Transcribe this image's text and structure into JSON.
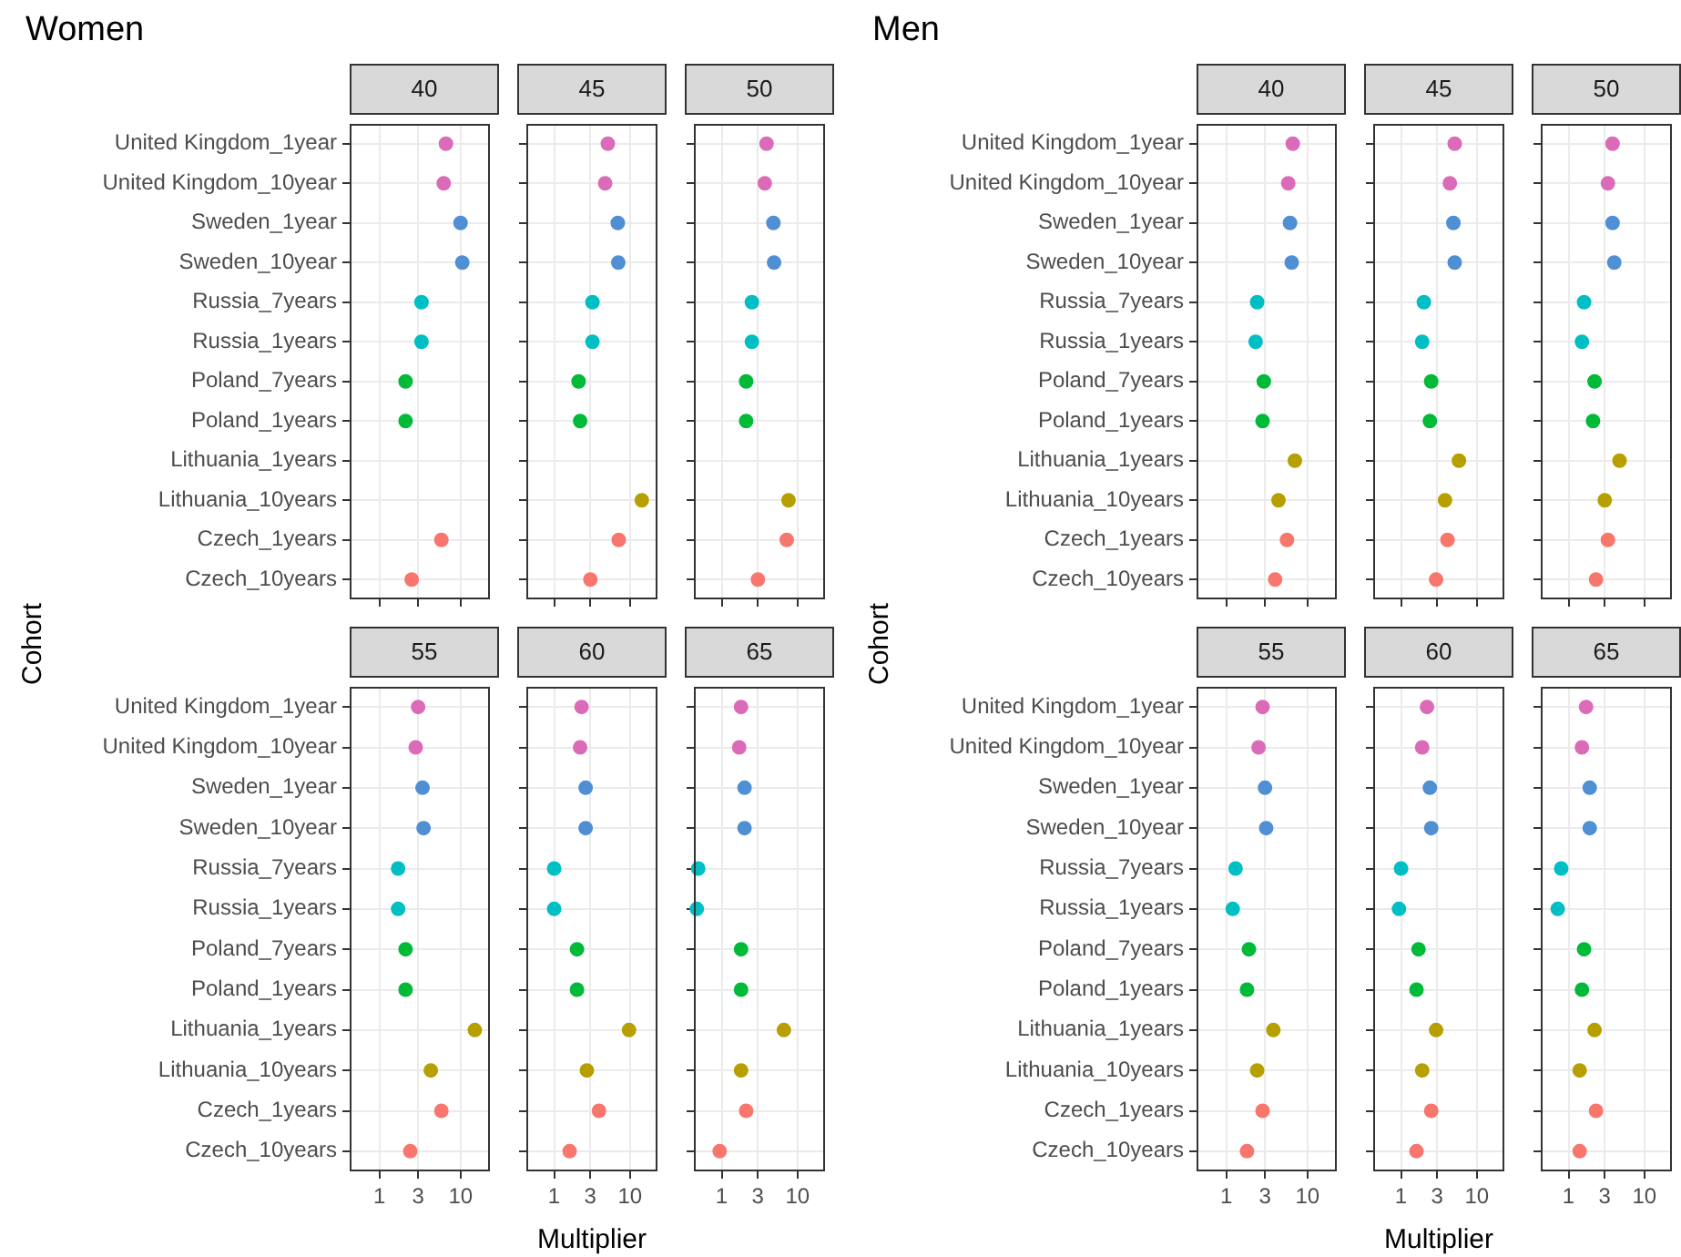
{
  "chart_data": [
    {
      "type": "scatter",
      "orientation": "horizontal",
      "title": "40",
      "annotations": [
        "Women"
      ],
      "ylabel": "Cohort",
      "categories": [
        "United Kingdom_1year",
        "United Kingdom_10year",
        "Sweden_1year",
        "Sweden_10year",
        "Russia_7years",
        "Russia_1years",
        "Poland_7years",
        "Poland_1years",
        "Lithuania_1years",
        "Lithuania_10years",
        "Czech_1years",
        "Czech_10years"
      ],
      "values": [
        6.6,
        6.2,
        10,
        10.5,
        3.3,
        3.3,
        2.1,
        2.1,
        null,
        null,
        5.8,
        2.5
      ],
      "colors": [
        "#db6bb8",
        "#db6bb8",
        "#4f8fd4",
        "#4f8fd4",
        "#00bfc4",
        "#00bfc4",
        "#00ba38",
        "#00ba38",
        "#b79f00",
        "#b79f00",
        "#f8766d",
        "#f8766d"
      ],
      "xlim": [
        0.43,
        23
      ],
      "xticks": [
        1,
        3,
        10
      ],
      "log": "x",
      "grid": true,
      "marker": "circle",
      "tick_labels": "y"
    },
    {
      "type": "scatter",
      "orientation": "horizontal",
      "title": "45",
      "categories": [
        null,
        null,
        null,
        null,
        null,
        null,
        null,
        null,
        null,
        null,
        null,
        null
      ],
      "values": [
        5.1,
        4.7,
        6.9,
        7.0,
        3.2,
        3.2,
        2.1,
        2.2,
        null,
        14.3,
        7.1,
        3.0
      ],
      "colors": [
        "#db6bb8",
        "#db6bb8",
        "#4f8fd4",
        "#4f8fd4",
        "#00bfc4",
        "#00bfc4",
        "#00ba38",
        "#00ba38",
        "#b79f00",
        "#b79f00",
        "#f8766d",
        "#f8766d"
      ],
      "xlim": [
        0.43,
        23
      ],
      "xticks": [
        1,
        3,
        10
      ],
      "log": "x",
      "grid": true,
      "marker": "circle",
      "tick_labels": false
    },
    {
      "type": "scatter",
      "orientation": "horizontal",
      "title": "50",
      "categories": [
        null,
        null,
        null,
        null,
        null,
        null,
        null,
        null,
        null,
        null,
        null,
        null
      ],
      "values": [
        3.9,
        3.7,
        4.8,
        4.9,
        2.5,
        2.5,
        2.1,
        2.1,
        null,
        7.6,
        7.2,
        3.0
      ],
      "colors": [
        "#db6bb8",
        "#db6bb8",
        "#4f8fd4",
        "#4f8fd4",
        "#00bfc4",
        "#00bfc4",
        "#00ba38",
        "#00ba38",
        "#b79f00",
        "#b79f00",
        "#f8766d",
        "#f8766d"
      ],
      "xlim": [
        0.43,
        23
      ],
      "xticks": [
        1,
        3,
        10
      ],
      "log": "x",
      "grid": true,
      "marker": "circle",
      "tick_labels": false
    },
    {
      "type": "scatter",
      "orientation": "horizontal",
      "title": "55",
      "categories": [
        "United Kingdom_1year",
        "United Kingdom_10year",
        "Sweden_1year",
        "Sweden_10year",
        "Russia_7years",
        "Russia_1years",
        "Poland_7years",
        "Poland_1years",
        "Lithuania_1years",
        "Lithuania_10years",
        "Czech_1years",
        "Czech_10years"
      ],
      "values": [
        3.0,
        2.8,
        3.4,
        3.5,
        1.7,
        1.7,
        2.1,
        2.1,
        15,
        4.3,
        5.8,
        2.4
      ],
      "colors": [
        "#db6bb8",
        "#db6bb8",
        "#4f8fd4",
        "#4f8fd4",
        "#00bfc4",
        "#00bfc4",
        "#00ba38",
        "#00ba38",
        "#b79f00",
        "#b79f00",
        "#f8766d",
        "#f8766d"
      ],
      "xlim": [
        0.43,
        23
      ],
      "xticks": [
        1,
        3,
        10
      ],
      "log": "x",
      "grid": true,
      "marker": "circle"
    },
    {
      "type": "scatter",
      "orientation": "horizontal",
      "title": "60",
      "xlabel": "Multiplier",
      "categories": [
        null,
        null,
        null,
        null,
        null,
        null,
        null,
        null,
        null,
        null,
        null,
        null
      ],
      "values": [
        2.3,
        2.2,
        2.6,
        2.6,
        1.0,
        1.0,
        2.0,
        2.0,
        9.7,
        2.7,
        3.9,
        1.6
      ],
      "colors": [
        "#db6bb8",
        "#db6bb8",
        "#4f8fd4",
        "#4f8fd4",
        "#00bfc4",
        "#00bfc4",
        "#00ba38",
        "#00ba38",
        "#b79f00",
        "#b79f00",
        "#f8766d",
        "#f8766d"
      ],
      "xlim": [
        0.43,
        23
      ],
      "xticks": [
        1,
        3,
        10
      ],
      "log": "x",
      "grid": true,
      "marker": "circle",
      "tick_labels": "x"
    },
    {
      "type": "scatter",
      "orientation": "horizontal",
      "title": "65",
      "categories": [
        null,
        null,
        null,
        null,
        null,
        null,
        null,
        null,
        null,
        null,
        null,
        null
      ],
      "values": [
        1.8,
        1.7,
        2.0,
        2.0,
        0.49,
        0.47,
        1.8,
        1.8,
        6.6,
        1.8,
        2.1,
        0.94
      ],
      "colors": [
        "#db6bb8",
        "#db6bb8",
        "#4f8fd4",
        "#4f8fd4",
        "#00bfc4",
        "#00bfc4",
        "#00ba38",
        "#00ba38",
        "#b79f00",
        "#b79f00",
        "#f8766d",
        "#f8766d"
      ],
      "xlim": [
        0.43,
        23
      ],
      "xticks": [
        1,
        3,
        10
      ],
      "log": "x",
      "grid": true,
      "marker": "circle",
      "tick_labels": "x"
    },
    {
      "type": "scatter",
      "orientation": "horizontal",
      "title": "40",
      "annotations": [
        "Men"
      ],
      "ylabel": "Cohort",
      "categories": [
        "United Kingdom_1year",
        "United Kingdom_10year",
        "Sweden_1year",
        "Sweden_10year",
        "Russia_7years",
        "Russia_1years",
        "Poland_7years",
        "Poland_1years",
        "Lithuania_1years",
        "Lithuania_10years",
        "Czech_1years",
        "Czech_10years"
      ],
      "values": [
        6.6,
        5.8,
        6.1,
        6.4,
        2.4,
        2.3,
        2.9,
        2.8,
        7.0,
        4.4,
        5.6,
        4.0
      ],
      "colors": [
        "#db6bb8",
        "#db6bb8",
        "#4f8fd4",
        "#4f8fd4",
        "#00bfc4",
        "#00bfc4",
        "#00ba38",
        "#00ba38",
        "#b79f00",
        "#b79f00",
        "#f8766d",
        "#f8766d"
      ],
      "xlim": [
        0.43,
        23
      ],
      "xticks": [
        1,
        3,
        10
      ],
      "log": "x",
      "grid": true,
      "marker": "circle",
      "tick_labels": "y"
    },
    {
      "type": "scatter",
      "orientation": "horizontal",
      "title": "45",
      "categories": [
        null,
        null,
        null,
        null,
        null,
        null,
        null,
        null,
        null,
        null,
        null,
        null
      ],
      "values": [
        5.1,
        4.4,
        4.9,
        5.1,
        2.0,
        1.9,
        2.5,
        2.4,
        5.8,
        3.8,
        4.1,
        2.9
      ],
      "colors": [
        "#db6bb8",
        "#db6bb8",
        "#4f8fd4",
        "#4f8fd4",
        "#00bfc4",
        "#00bfc4",
        "#00ba38",
        "#00ba38",
        "#b79f00",
        "#b79f00",
        "#f8766d",
        "#f8766d"
      ],
      "xlim": [
        0.43,
        23
      ],
      "xticks": [
        1,
        3,
        10
      ],
      "log": "x",
      "grid": true,
      "marker": "circle",
      "tick_labels": false
    },
    {
      "type": "scatter",
      "orientation": "horizontal",
      "title": "50",
      "categories": [
        null,
        null,
        null,
        null,
        null,
        null,
        null,
        null,
        null,
        null,
        null,
        null
      ],
      "values": [
        3.8,
        3.3,
        3.8,
        4.0,
        1.6,
        1.5,
        2.2,
        2.1,
        4.7,
        3.0,
        3.3,
        2.3
      ],
      "colors": [
        "#db6bb8",
        "#db6bb8",
        "#4f8fd4",
        "#4f8fd4",
        "#00bfc4",
        "#00bfc4",
        "#00ba38",
        "#00ba38",
        "#b79f00",
        "#b79f00",
        "#f8766d",
        "#f8766d"
      ],
      "xlim": [
        0.43,
        23
      ],
      "xticks": [
        1,
        3,
        10
      ],
      "log": "x",
      "grid": true,
      "marker": "circle",
      "tick_labels": false
    },
    {
      "type": "scatter",
      "orientation": "horizontal",
      "title": "55",
      "categories": [
        "United Kingdom_1year",
        "United Kingdom_10year",
        "Sweden_1year",
        "Sweden_10year",
        "Russia_7years",
        "Russia_1years",
        "Poland_7years",
        "Poland_1years",
        "Lithuania_1years",
        "Lithuania_10years",
        "Czech_1years",
        "Czech_10years"
      ],
      "values": [
        2.8,
        2.5,
        3.0,
        3.1,
        1.3,
        1.2,
        1.9,
        1.8,
        3.8,
        2.4,
        2.8,
        1.8
      ],
      "colors": [
        "#db6bb8",
        "#db6bb8",
        "#4f8fd4",
        "#4f8fd4",
        "#00bfc4",
        "#00bfc4",
        "#00ba38",
        "#00ba38",
        "#b79f00",
        "#b79f00",
        "#f8766d",
        "#f8766d"
      ],
      "xlim": [
        0.43,
        23
      ],
      "xticks": [
        1,
        3,
        10
      ],
      "log": "x",
      "grid": true,
      "marker": "circle"
    },
    {
      "type": "scatter",
      "orientation": "horizontal",
      "title": "60",
      "xlabel": "Multiplier",
      "categories": [
        null,
        null,
        null,
        null,
        null,
        null,
        null,
        null,
        null,
        null,
        null,
        null
      ],
      "values": [
        2.2,
        1.9,
        2.4,
        2.5,
        1.0,
        0.94,
        1.7,
        1.6,
        2.9,
        1.9,
        2.5,
        1.6
      ],
      "colors": [
        "#db6bb8",
        "#db6bb8",
        "#4f8fd4",
        "#4f8fd4",
        "#00bfc4",
        "#00bfc4",
        "#00ba38",
        "#00ba38",
        "#b79f00",
        "#b79f00",
        "#f8766d",
        "#f8766d"
      ],
      "xlim": [
        0.43,
        23
      ],
      "xticks": [
        1,
        3,
        10
      ],
      "log": "x",
      "grid": true,
      "marker": "circle",
      "tick_labels": "x"
    },
    {
      "type": "scatter",
      "orientation": "horizontal",
      "title": "65",
      "categories": [
        null,
        null,
        null,
        null,
        null,
        null,
        null,
        null,
        null,
        null,
        null,
        null
      ],
      "values": [
        1.7,
        1.5,
        1.9,
        1.9,
        0.8,
        0.72,
        1.6,
        1.5,
        2.2,
        1.4,
        2.3,
        1.4
      ],
      "colors": [
        "#db6bb8",
        "#db6bb8",
        "#4f8fd4",
        "#4f8fd4",
        "#00bfc4",
        "#00bfc4",
        "#00ba38",
        "#00ba38",
        "#b79f00",
        "#b79f00",
        "#f8766d",
        "#f8766d"
      ],
      "xlim": [
        0.43,
        23
      ],
      "xticks": [
        1,
        3,
        10
      ],
      "log": "x",
      "grid": true,
      "marker": "circle",
      "tick_labels": "x"
    }
  ]
}
